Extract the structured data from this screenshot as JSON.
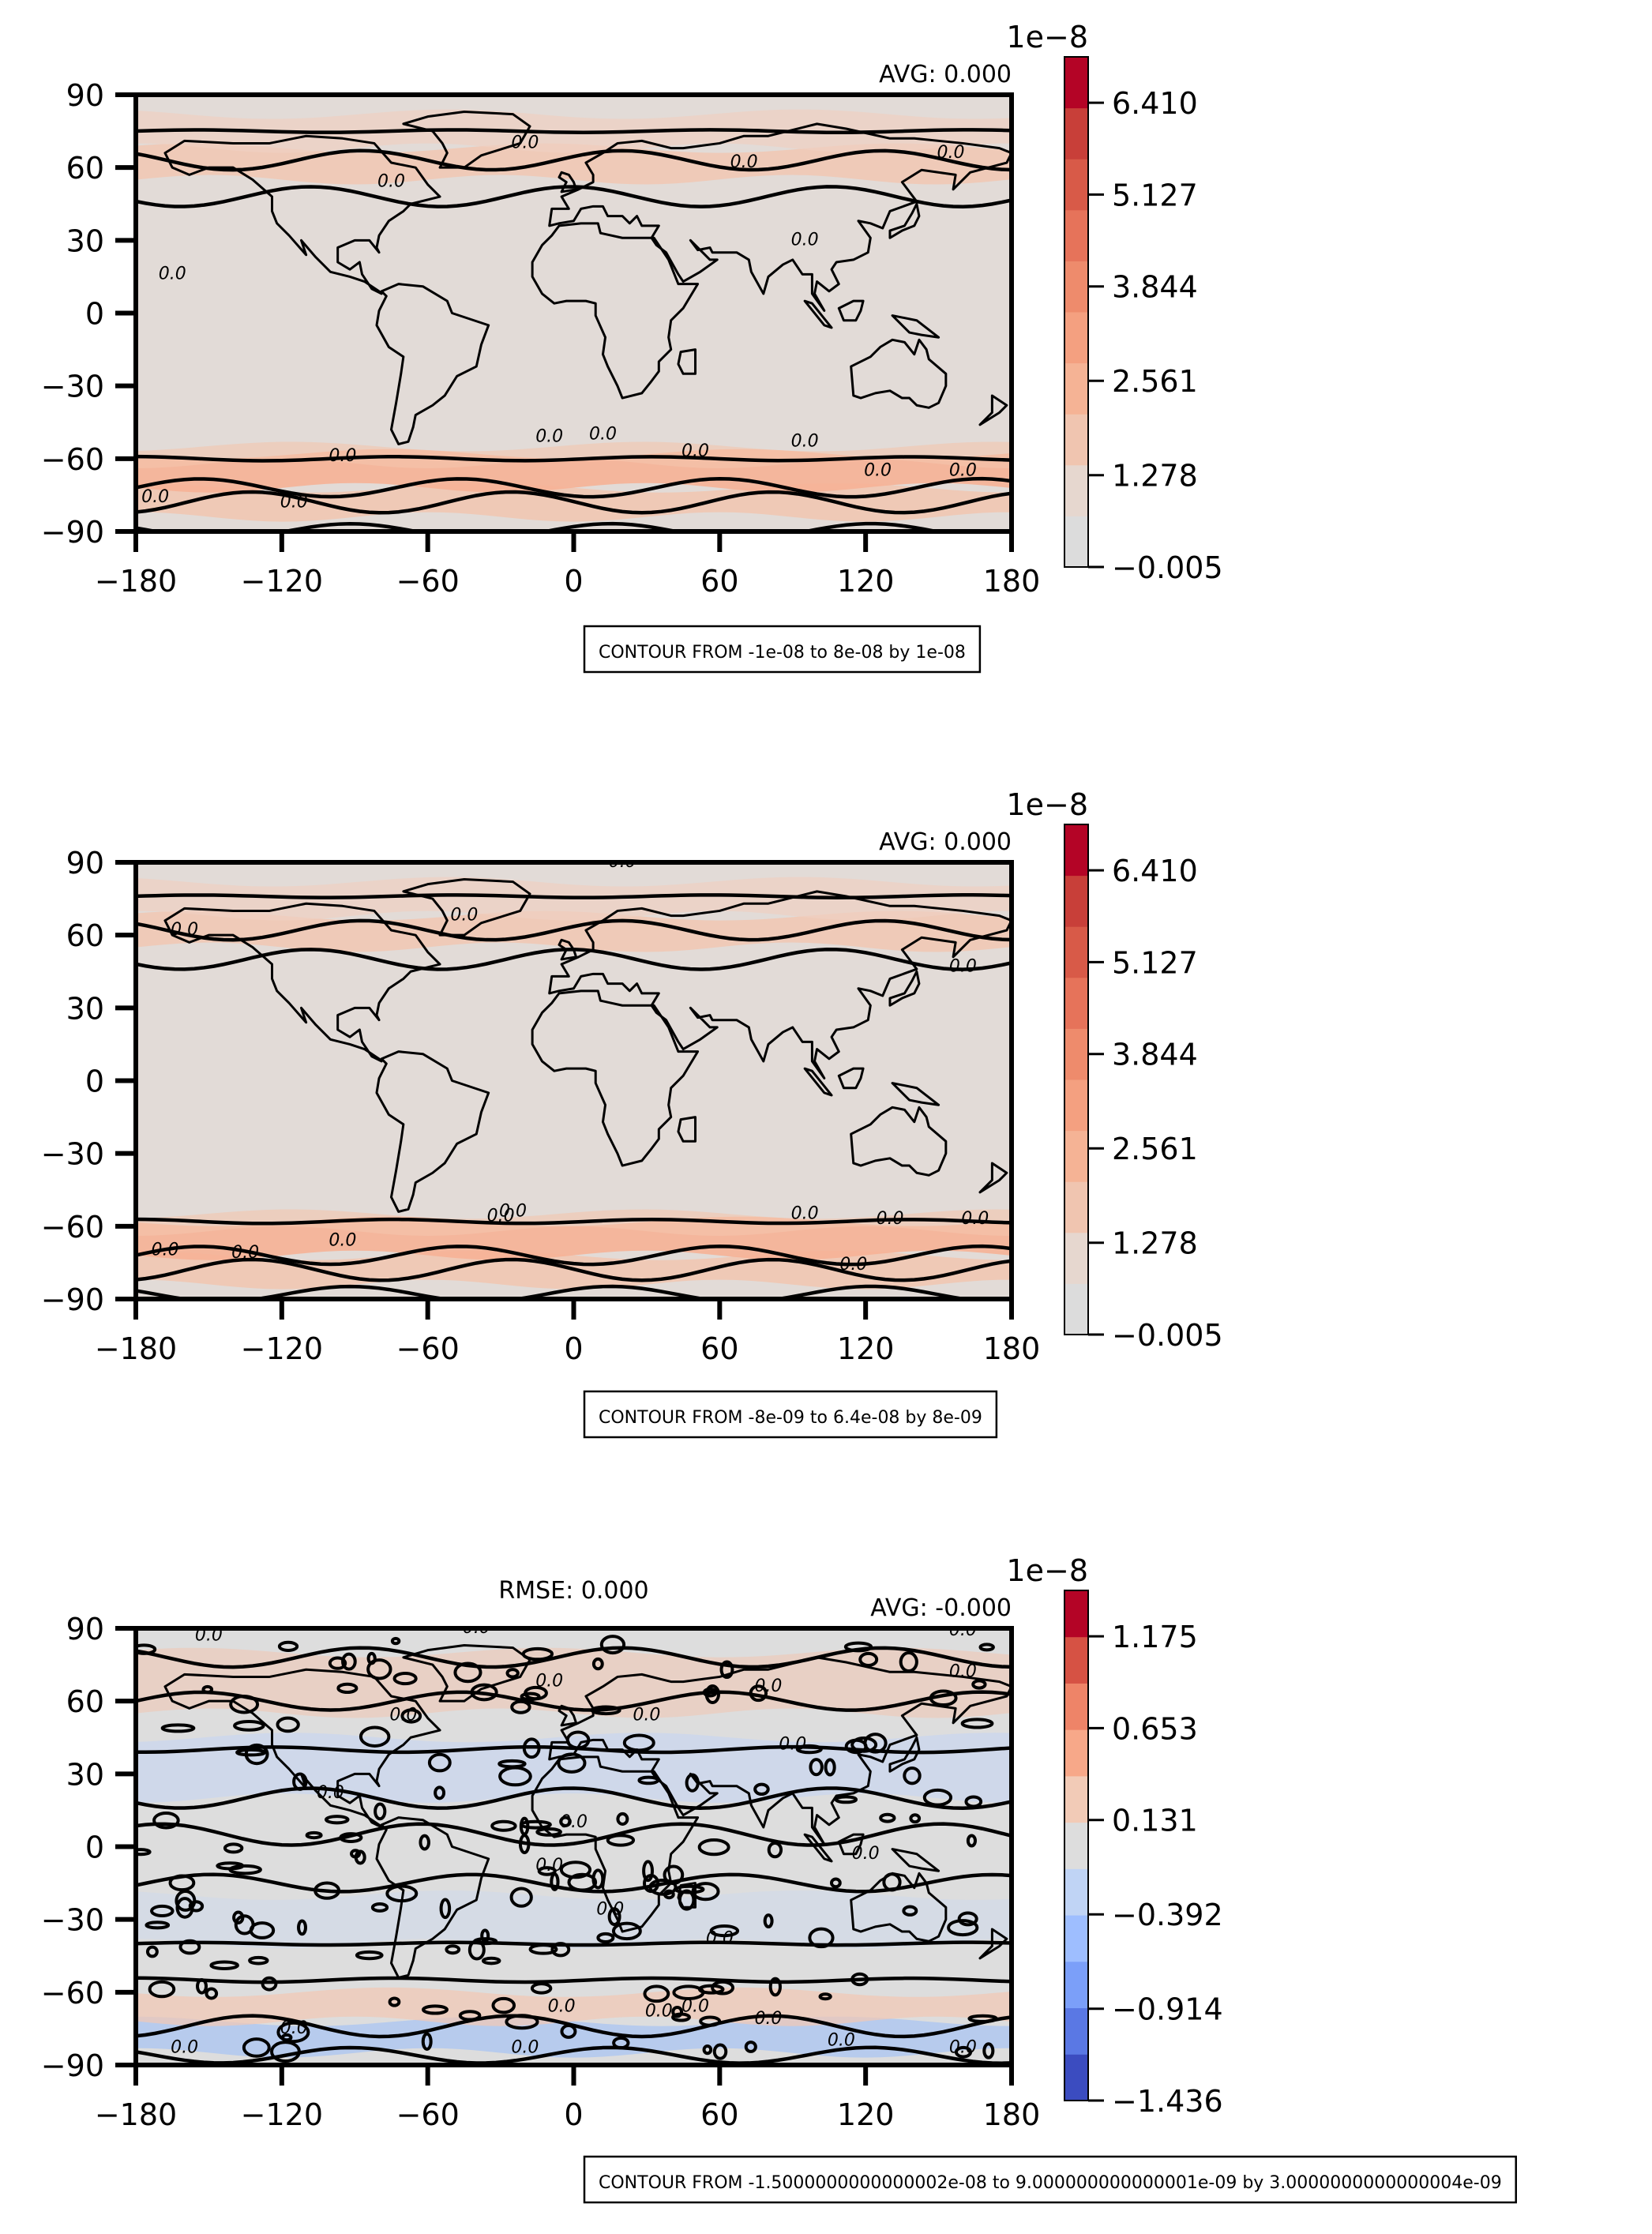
{
  "chart_data": [
    {
      "type": "heatmap",
      "panel": "top",
      "xlim": [
        -180,
        180
      ],
      "ylim": [
        -90,
        90
      ],
      "xticks": [
        "−180",
        "−120",
        "−60",
        "0",
        "60",
        "120",
        "180"
      ],
      "yticks": [
        "90",
        "60",
        "30",
        "0",
        "−30",
        "−60",
        "−90"
      ],
      "avg_text": "AVG: 0.000",
      "rmse_text": "",
      "colorbar": {
        "exponent": "1e−8",
        "tick_labels": [
          "6.410",
          "5.127",
          "3.844",
          "2.561",
          "1.278",
          "−0.005"
        ],
        "colors": [
          "#dcdcdc",
          "#e6d7cf",
          "#f0c5b0",
          "#f5b395",
          "#f4a080",
          "#ee8b6c",
          "#e6735a",
          "#d85a48",
          "#c83f39",
          "#b40426"
        ]
      },
      "contour_text": "CONTOUR FROM -1e-08 to 8e-08 by 1e-08",
      "contour_label": "0.0"
    },
    {
      "type": "heatmap",
      "panel": "middle",
      "xlim": [
        -180,
        180
      ],
      "ylim": [
        -90,
        90
      ],
      "xticks": [
        "−180",
        "−120",
        "−60",
        "0",
        "60",
        "120",
        "180"
      ],
      "yticks": [
        "90",
        "60",
        "30",
        "0",
        "−30",
        "−60",
        "−90"
      ],
      "avg_text": "AVG: 0.000",
      "rmse_text": "",
      "colorbar": {
        "exponent": "1e−8",
        "tick_labels": [
          "6.410",
          "5.127",
          "3.844",
          "2.561",
          "1.278",
          "−0.005"
        ],
        "colors": [
          "#dcdcdc",
          "#e6d7cf",
          "#f0c5b0",
          "#f5b395",
          "#f4a080",
          "#ee8b6c",
          "#e6735a",
          "#d85a48",
          "#c83f39",
          "#b40426"
        ]
      },
      "contour_text": "CONTOUR FROM -8e-09 to 6.4e-08 by 8e-09",
      "contour_label": "0.0"
    },
    {
      "type": "heatmap",
      "panel": "bottom",
      "xlim": [
        -180,
        180
      ],
      "ylim": [
        -90,
        90
      ],
      "xticks": [
        "−180",
        "−120",
        "−60",
        "0",
        "60",
        "120",
        "180"
      ],
      "yticks": [
        "90",
        "60",
        "30",
        "0",
        "−30",
        "−60",
        "−90"
      ],
      "avg_text": "AVG: -0.000",
      "rmse_text": "RMSE: 0.000",
      "colorbar": {
        "exponent": "1e−8",
        "tick_labels": [
          "1.175",
          "0.653",
          "0.131",
          "−0.392",
          "−0.914",
          "−1.436"
        ],
        "colors": [
          "#3b4cc0",
          "#5a78e4",
          "#7b9ff9",
          "#9ebeff",
          "#c0d4f5",
          "#dddddd",
          "#f2cbb7",
          "#f7a889",
          "#ee8468",
          "#d65244",
          "#b40426"
        ]
      },
      "contour_text": "CONTOUR FROM -1.5000000000000002e-08 to 9.000000000000001e-09 by 3.0000000000000004e-09",
      "contour_label": "0.0"
    }
  ]
}
